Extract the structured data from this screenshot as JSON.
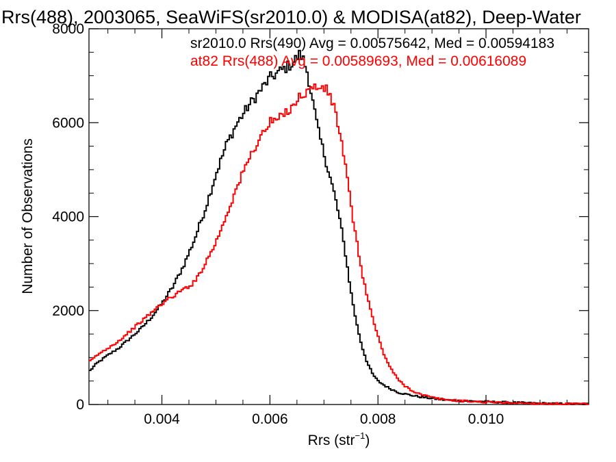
{
  "chart_data": {
    "type": "line",
    "title": "Rrs(488), 2003065, SeaWiFS(sr2010.0) & MODISA(at82), Deep-Water",
    "xlabel": "Rrs (str",
    "xlabel_sup": "−1",
    "xlabel_close": ")",
    "ylabel": "Number of Observations",
    "xlim": [
      0.00265,
      0.0119
    ],
    "ylim": [
      0,
      8000
    ],
    "xticks": [
      0.004,
      0.006,
      0.008,
      0.01
    ],
    "xtick_labels": [
      "0.004",
      "0.006",
      "0.008",
      "0.010"
    ],
    "yticks": [
      0,
      2000,
      4000,
      6000,
      8000
    ],
    "ytick_labels": [
      "0",
      "2000",
      "4000",
      "6000",
      "8000"
    ],
    "grid": false,
    "legend_position": "top-right",
    "series": [
      {
        "name": "sr2010.0",
        "color": "#000000",
        "label": "sr2010.0 Rrs(490) Avg = 0.00575642, Med = 0.00594183",
        "x": [
          0.00265,
          0.0028,
          0.003,
          0.0032,
          0.0034,
          0.0036,
          0.0038,
          0.004,
          0.0042,
          0.0044,
          0.0046,
          0.0048,
          0.005,
          0.0052,
          0.0054,
          0.0056,
          0.0058,
          0.006,
          0.0062,
          0.0064,
          0.00655,
          0.0066,
          0.0067,
          0.0068,
          0.0069,
          0.007,
          0.0071,
          0.0072,
          0.0073,
          0.0074,
          0.0075,
          0.0076,
          0.0077,
          0.0078,
          0.0079,
          0.008,
          0.0082,
          0.0084,
          0.0086,
          0.0088,
          0.009,
          0.0092,
          0.0095,
          0.01,
          0.0105,
          0.011,
          0.0115,
          0.0119
        ],
        "y": [
          700,
          880,
          1050,
          1200,
          1400,
          1600,
          1850,
          2150,
          2500,
          2950,
          3500,
          4150,
          4900,
          5550,
          6000,
          6350,
          6650,
          6950,
          7100,
          7250,
          7450,
          7400,
          7050,
          6400,
          5800,
          5350,
          4900,
          4450,
          3900,
          3200,
          2400,
          1750,
          1250,
          900,
          650,
          500,
          350,
          250,
          200,
          160,
          130,
          100,
          80,
          60,
          40,
          25,
          15,
          10
        ]
      },
      {
        "name": "at82",
        "color": "#ff0000",
        "label": "at82 Rrs(488) Avg = 0.00589693, Med = 0.00616089",
        "x": [
          0.00265,
          0.0028,
          0.003,
          0.0032,
          0.0034,
          0.0036,
          0.0038,
          0.004,
          0.0042,
          0.0044,
          0.0046,
          0.0048,
          0.005,
          0.0052,
          0.0054,
          0.0056,
          0.0058,
          0.006,
          0.0062,
          0.0064,
          0.0066,
          0.0068,
          0.007,
          0.0071,
          0.0072,
          0.0073,
          0.0074,
          0.0075,
          0.0076,
          0.0077,
          0.0078,
          0.0079,
          0.008,
          0.0081,
          0.0082,
          0.0083,
          0.0084,
          0.0085,
          0.0086,
          0.0087,
          0.0088,
          0.009,
          0.0092,
          0.0095,
          0.01,
          0.0105,
          0.011,
          0.0115,
          0.0119
        ],
        "y": [
          900,
          1050,
          1200,
          1350,
          1550,
          1750,
          1950,
          2150,
          2300,
          2450,
          2600,
          3000,
          3450,
          4050,
          4650,
          5200,
          5650,
          6000,
          6100,
          6350,
          6600,
          6750,
          6750,
          6600,
          6300,
          5750,
          5050,
          4250,
          3500,
          2850,
          2300,
          1850,
          1450,
          1100,
          850,
          650,
          500,
          400,
          320,
          260,
          210,
          150,
          110,
          80,
          50,
          35,
          20,
          12,
          8
        ]
      }
    ]
  }
}
